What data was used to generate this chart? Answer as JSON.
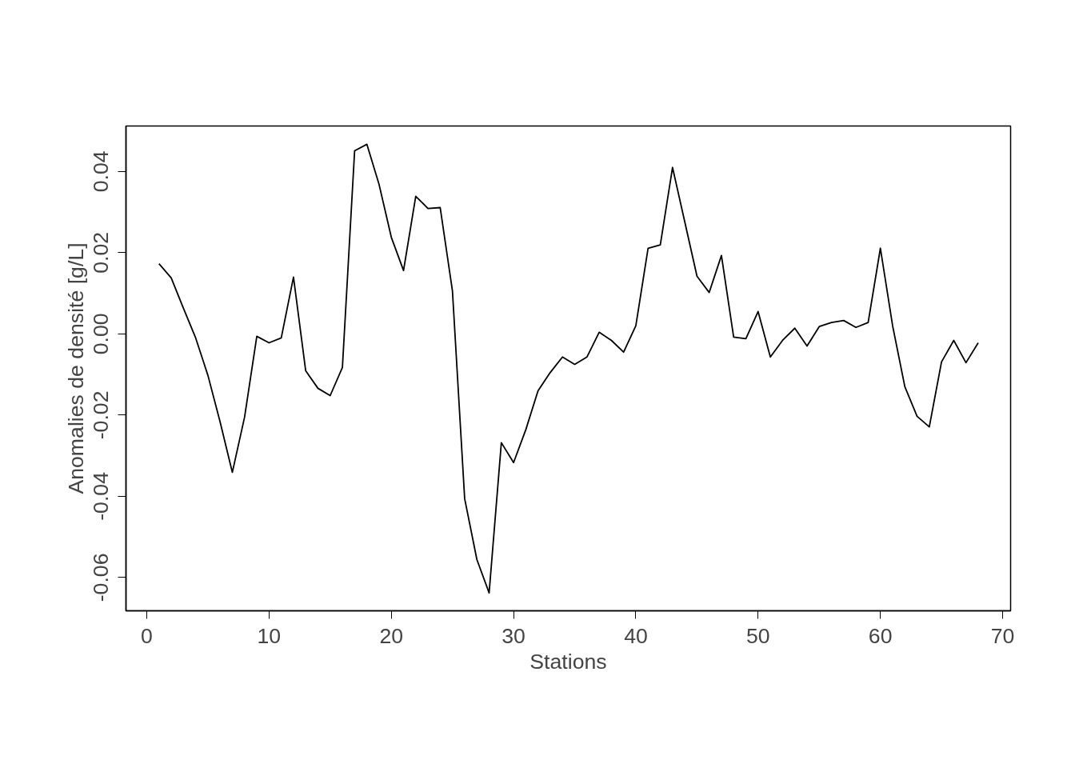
{
  "chart_data": {
    "type": "line",
    "xlabel": "Stations",
    "ylabel": "Anomalies de densité [g/L]",
    "x": [
      1,
      2,
      3,
      4,
      5,
      6,
      7,
      8,
      9,
      10,
      11,
      12,
      13,
      14,
      15,
      16,
      17,
      18,
      19,
      20,
      21,
      22,
      23,
      24,
      25,
      26,
      27,
      28,
      29,
      30,
      31,
      32,
      33,
      34,
      35,
      36,
      37,
      38,
      39,
      40,
      41,
      42,
      43,
      44,
      45,
      46,
      47,
      48,
      49,
      50,
      51,
      52,
      53,
      54,
      55,
      56,
      57,
      58,
      59,
      60,
      61,
      62,
      63,
      64,
      65,
      66,
      67,
      68
    ],
    "series": [
      {
        "color": "#000000",
        "values": [
          0.0173,
          0.0138,
          0.0063,
          -0.001,
          -0.0102,
          -0.0217,
          -0.0341,
          -0.0205,
          -0.0006,
          -0.0022,
          -0.001,
          0.014,
          -0.0091,
          -0.0134,
          -0.0152,
          -0.0083,
          0.0451,
          0.0467,
          0.0368,
          0.0238,
          0.0156,
          0.0339,
          0.0309,
          0.0311,
          0.0106,
          -0.0406,
          -0.0556,
          -0.0638,
          -0.0268,
          -0.0317,
          -0.0236,
          -0.014,
          -0.0095,
          -0.0057,
          -0.0075,
          -0.0057,
          0.0004,
          -0.0016,
          -0.0045,
          0.002,
          0.0211,
          0.0219,
          0.041,
          0.0276,
          0.0142,
          0.0102,
          0.0193,
          -0.0008,
          -0.0012,
          0.0055,
          -0.0057,
          -0.0016,
          0.0014,
          -0.003,
          0.0018,
          0.0028,
          0.0033,
          0.0016,
          0.0028,
          0.0211,
          0.002,
          -0.013,
          -0.0203,
          -0.0229,
          -0.0069,
          -0.0016,
          -0.0071,
          -0.0022
        ]
      }
    ],
    "xlim": [
      -1.7,
      70.65
    ],
    "ylim": [
      -0.0682,
      0.0512
    ],
    "xticks": [
      0,
      10,
      20,
      30,
      40,
      50,
      60,
      70
    ],
    "yticks": [
      {
        "value": -0.06,
        "label": "-0.06"
      },
      {
        "value": -0.04,
        "label": "-0.04"
      },
      {
        "value": -0.02,
        "label": "-0.02"
      },
      {
        "value": 0,
        "label": "0.00"
      },
      {
        "value": 0.02,
        "label": "0.02"
      },
      {
        "value": 0.04,
        "label": "0.04"
      }
    ],
    "grid": false,
    "marker": "none",
    "line_style": "solid"
  }
}
